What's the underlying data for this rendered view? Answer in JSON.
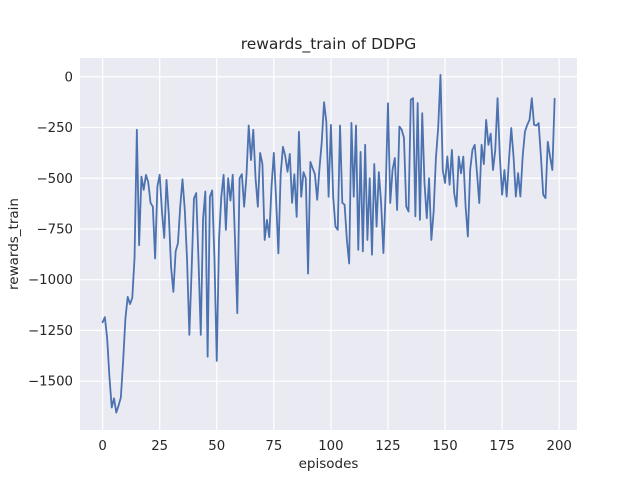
{
  "chart_data": {
    "type": "line",
    "title": "rewards_train of DDPG",
    "xlabel": "episodes",
    "ylabel": "rewards_train",
    "series_name": "rewards_train",
    "xticks": [
      0,
      25,
      50,
      75,
      100,
      125,
      150,
      175,
      200
    ],
    "yticks": [
      0,
      -250,
      -500,
      -750,
      -1000,
      -1250,
      -1500
    ],
    "xlim": [
      -9.9,
      207.8
    ],
    "ylim": [
      -1741,
      93
    ],
    "grid": true,
    "legend": false,
    "style": "seaborn-darkgrid",
    "colors": {
      "line": "#4c72b0",
      "plot_background": "#eaeaf2",
      "grid": "#ffffff",
      "figure_background": "#ffffff",
      "text": "#262626"
    },
    "x": [
      0,
      1,
      2,
      3,
      4,
      5,
      6,
      7,
      8,
      9,
      10,
      11,
      12,
      13,
      14,
      15,
      16,
      17,
      18,
      19,
      20,
      21,
      22,
      23,
      24,
      25,
      26,
      27,
      28,
      29,
      30,
      31,
      32,
      33,
      34,
      35,
      36,
      37,
      38,
      39,
      40,
      41,
      42,
      43,
      44,
      45,
      46,
      47,
      48,
      49,
      50,
      51,
      52,
      53,
      54,
      55,
      56,
      57,
      58,
      59,
      60,
      61,
      62,
      63,
      64,
      65,
      66,
      67,
      68,
      69,
      70,
      71,
      72,
      73,
      74,
      75,
      76,
      77,
      78,
      79,
      80,
      81,
      82,
      83,
      84,
      85,
      86,
      87,
      88,
      89,
      90,
      91,
      92,
      93,
      94,
      95,
      96,
      97,
      98,
      99,
      100,
      101,
      102,
      103,
      104,
      105,
      106,
      107,
      108,
      109,
      110,
      111,
      112,
      113,
      114,
      115,
      116,
      117,
      118,
      119,
      120,
      121,
      122,
      123,
      124,
      125,
      126,
      127,
      128,
      129,
      130,
      131,
      132,
      133,
      134,
      135,
      136,
      137,
      138,
      139,
      140,
      141,
      142,
      143,
      144,
      145,
      146,
      147,
      148,
      149,
      150,
      151,
      152,
      153,
      154,
      155,
      156,
      157,
      158,
      159,
      160,
      161,
      162,
      163,
      164,
      165,
      166,
      167,
      168,
      169,
      170,
      171,
      172,
      173,
      174,
      175,
      176,
      177,
      178,
      179,
      180,
      181,
      182,
      183,
      184,
      185,
      186,
      187,
      188,
      189,
      190,
      191,
      192,
      193,
      194,
      195,
      196,
      197,
      198
    ],
    "values": [
      -1210,
      -1185,
      -1290,
      -1480,
      -1630,
      -1585,
      -1655,
      -1620,
      -1580,
      -1400,
      -1190,
      -1085,
      -1120,
      -1090,
      -890,
      -261,
      -830,
      -492,
      -557,
      -483,
      -520,
      -621,
      -640,
      -895,
      -541,
      -483,
      -664,
      -794,
      -508,
      -680,
      -940,
      -1060,
      -860,
      -820,
      -640,
      -505,
      -656,
      -902,
      -1272,
      -950,
      -600,
      -573,
      -902,
      -1272,
      -700,
      -565,
      -1380,
      -591,
      -560,
      -900,
      -1400,
      -800,
      -590,
      -483,
      -754,
      -500,
      -610,
      -483,
      -804,
      -1165,
      -500,
      -480,
      -640,
      -490,
      -240,
      -410,
      -261,
      -500,
      -640,
      -375,
      -430,
      -804,
      -705,
      -790,
      -540,
      -375,
      -606,
      -870,
      -480,
      -345,
      -390,
      -468,
      -380,
      -621,
      -480,
      -690,
      -271,
      -591,
      -470,
      -500,
      -970,
      -419,
      -450,
      -480,
      -606,
      -450,
      -320,
      -125,
      -222,
      -591,
      -237,
      -591,
      -738,
      -754,
      -240,
      -621,
      -630,
      -804,
      -920,
      -227,
      -591,
      -240,
      -853,
      -370,
      -860,
      -335,
      -804,
      -500,
      -877,
      -430,
      -738,
      -470,
      -622,
      -869,
      -560,
      -130,
      -622,
      -459,
      -400,
      -656,
      -245,
      -260,
      -300,
      -639,
      -664,
      -113,
      -105,
      -688,
      -129,
      -705,
      -179,
      -523,
      -697,
      -500,
      -804,
      -665,
      -400,
      -250,
      10,
      -459,
      -523,
      -393,
      -532,
      -360,
      -573,
      -639,
      -393,
      -475,
      -393,
      -639,
      -787,
      -459,
      -360,
      -335,
      -475,
      -622,
      -335,
      -430,
      -212,
      -335,
      -280,
      -459,
      -360,
      -105,
      -393,
      -581,
      -459,
      -590,
      -409,
      -252,
      -393,
      -590,
      -475,
      -590,
      -393,
      -270,
      -237,
      -212,
      -105,
      -237,
      -240,
      -228,
      -393,
      -581,
      -598,
      -320,
      -393,
      -459,
      -108
    ]
  }
}
